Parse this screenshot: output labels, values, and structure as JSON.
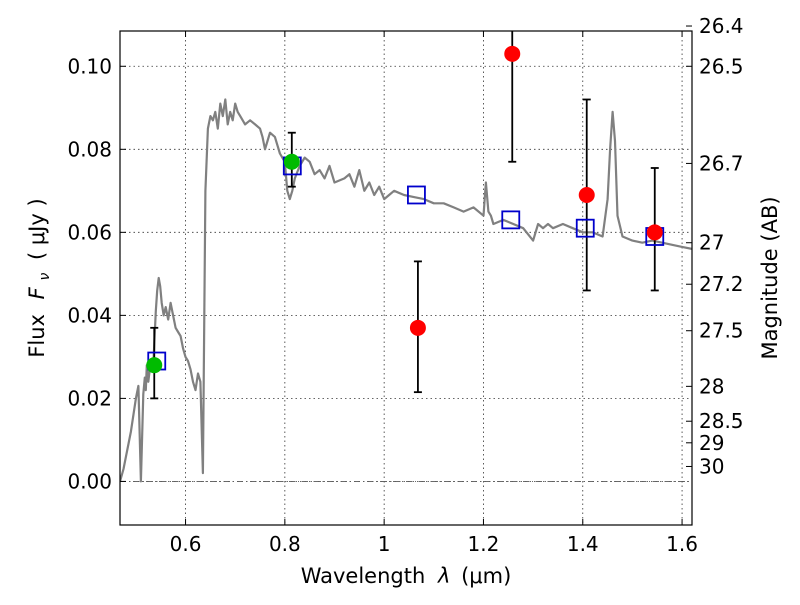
{
  "chart_data": {
    "type": "scatter",
    "xlabel_prefix": "Wavelength",
    "xlabel_symbol": "λ",
    "xlabel_unit": "(μm)",
    "ylabel_prefix": "Flux",
    "ylabel_symbol": "F",
    "ylabel_subscript": "ν",
    "ylabel_unit": "( μJy )",
    "y2label": "Magnitude (AB)",
    "xlim": [
      0.468,
      1.62
    ],
    "ylim": [
      -0.0105,
      0.1085
    ],
    "x_ticks": [
      0.6,
      0.8,
      1.0,
      1.2,
      1.4,
      1.6
    ],
    "x_tick_labels": [
      "0.6",
      "0.8",
      "1",
      "1.2",
      "1.4",
      "1.6"
    ],
    "y_ticks": [
      0.0,
      0.02,
      0.04,
      0.06,
      0.08,
      0.1
    ],
    "y_tick_labels": [
      "0.00",
      "0.02",
      "0.04",
      "0.06",
      "0.08",
      "0.10"
    ],
    "mag_ticks": [
      {
        "flux": 0.1097,
        "label": "26.4"
      },
      {
        "flux": 0.1,
        "label": "26.5"
      },
      {
        "flux": 0.0766,
        "label": "26.7"
      },
      {
        "flux": 0.0575,
        "label": "27"
      },
      {
        "flux": 0.0475,
        "label": "27.2"
      },
      {
        "flux": 0.0363,
        "label": "27.5"
      },
      {
        "flux": 0.0229,
        "label": "28"
      },
      {
        "flux": 0.0145,
        "label": "28.5"
      },
      {
        "flux": 0.0093,
        "label": "29"
      },
      {
        "flux": 0.0036,
        "label": "30"
      }
    ],
    "grid": true,
    "zero_line": 0.0,
    "series": [
      {
        "name": "model-spectrum",
        "kind": "line",
        "color": "#808080",
        "x": [
          0.468,
          0.475,
          0.49,
          0.5,
          0.505,
          0.51,
          0.515,
          0.518,
          0.52,
          0.522,
          0.525,
          0.53,
          0.535,
          0.54,
          0.543,
          0.546,
          0.549,
          0.552,
          0.556,
          0.56,
          0.565,
          0.57,
          0.575,
          0.58,
          0.585,
          0.59,
          0.595,
          0.6,
          0.605,
          0.61,
          0.615,
          0.62,
          0.625,
          0.63,
          0.635,
          0.64,
          0.645,
          0.65,
          0.655,
          0.66,
          0.665,
          0.67,
          0.675,
          0.68,
          0.685,
          0.69,
          0.695,
          0.7,
          0.705,
          0.71,
          0.72,
          0.73,
          0.74,
          0.75,
          0.755,
          0.76,
          0.765,
          0.77,
          0.78,
          0.79,
          0.8,
          0.805,
          0.81,
          0.815,
          0.82,
          0.83,
          0.84,
          0.85,
          0.86,
          0.87,
          0.88,
          0.89,
          0.9,
          0.92,
          0.93,
          0.94,
          0.95,
          0.96,
          0.97,
          0.98,
          0.99,
          1.0,
          1.01,
          1.02,
          1.04,
          1.06,
          1.08,
          1.1,
          1.12,
          1.14,
          1.16,
          1.18,
          1.2,
          1.205,
          1.21,
          1.215,
          1.22,
          1.24,
          1.26,
          1.28,
          1.3,
          1.31,
          1.32,
          1.33,
          1.34,
          1.36,
          1.38,
          1.4,
          1.42,
          1.44,
          1.45,
          1.455,
          1.46,
          1.465,
          1.47,
          1.48,
          1.5,
          1.52,
          1.54,
          1.56,
          1.58,
          1.6,
          1.62
        ],
        "y": [
          0.0,
          0.003,
          0.012,
          0.02,
          0.023,
          0.0,
          0.021,
          0.025,
          0.022,
          0.028,
          0.024,
          0.029,
          0.028,
          0.041,
          0.046,
          0.049,
          0.047,
          0.043,
          0.04,
          0.042,
          0.039,
          0.043,
          0.04,
          0.037,
          0.036,
          0.035,
          0.032,
          0.03,
          0.029,
          0.027,
          0.024,
          0.022,
          0.026,
          0.024,
          0.002,
          0.07,
          0.085,
          0.088,
          0.087,
          0.089,
          0.085,
          0.091,
          0.088,
          0.092,
          0.086,
          0.089,
          0.087,
          0.091,
          0.089,
          0.088,
          0.086,
          0.087,
          0.086,
          0.085,
          0.083,
          0.08,
          0.082,
          0.084,
          0.083,
          0.079,
          0.077,
          0.07,
          0.068,
          0.07,
          0.073,
          0.076,
          0.078,
          0.077,
          0.074,
          0.075,
          0.073,
          0.076,
          0.072,
          0.073,
          0.074,
          0.071,
          0.075,
          0.07,
          0.072,
          0.069,
          0.071,
          0.068,
          0.069,
          0.07,
          0.069,
          0.0685,
          0.068,
          0.067,
          0.067,
          0.066,
          0.065,
          0.066,
          0.064,
          0.072,
          0.065,
          0.064,
          0.062,
          0.063,
          0.062,
          0.061,
          0.058,
          0.062,
          0.061,
          0.062,
          0.061,
          0.062,
          0.061,
          0.06,
          0.06,
          0.059,
          0.068,
          0.08,
          0.089,
          0.082,
          0.064,
          0.059,
          0.058,
          0.0575,
          0.058,
          0.0575,
          0.057,
          0.0565,
          0.056
        ]
      },
      {
        "name": "model-photometry",
        "kind": "open-square",
        "color": "#0000cc",
        "x": [
          0.542,
          0.815,
          1.065,
          1.255,
          1.405,
          1.545
        ],
        "y": [
          0.029,
          0.076,
          0.069,
          0.063,
          0.061,
          0.059
        ]
      },
      {
        "name": "detections",
        "kind": "filled-circle",
        "color": "#00bb00",
        "x": [
          0.537,
          0.814
        ],
        "y": [
          0.028,
          0.077
        ],
        "err_low": [
          0.02,
          0.071
        ],
        "err_high": [
          0.037,
          0.084
        ]
      },
      {
        "name": "upper-limits",
        "kind": "filled-circle",
        "color": "#ff0000",
        "x": [
          1.068,
          1.258,
          1.408,
          1.545
        ],
        "y": [
          0.037,
          0.103,
          0.069,
          0.06
        ],
        "err_low": [
          0.0215,
          0.077,
          0.046,
          0.046
        ],
        "err_high": [
          0.053,
          0.1125,
          0.092,
          0.0755
        ]
      }
    ]
  }
}
